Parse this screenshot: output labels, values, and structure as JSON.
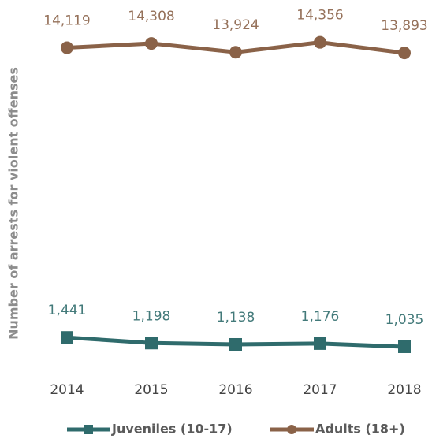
{
  "chart_data": {
    "type": "line",
    "y_label": "Number of arrests for violent offenses",
    "categories": [
      "2014",
      "2015",
      "2016",
      "2017",
      "2018"
    ],
    "ylim": [
      0,
      16000
    ],
    "series": [
      {
        "name": "Juveniles (10-17)",
        "color": "#2f6b6c",
        "marker": "square",
        "values": [
          1441,
          1198,
          1138,
          1176,
          1035
        ],
        "value_labels": [
          "1,441",
          "1,198",
          "1,138",
          "1,176",
          "1,035"
        ]
      },
      {
        "name": "Adults (18+)",
        "color": "#8a6248",
        "marker": "circle",
        "values": [
          14119,
          14308,
          13924,
          14356,
          13893
        ],
        "value_labels": [
          "14,119",
          "14,308",
          "13,924",
          "14,356",
          "13,893"
        ]
      }
    ]
  }
}
